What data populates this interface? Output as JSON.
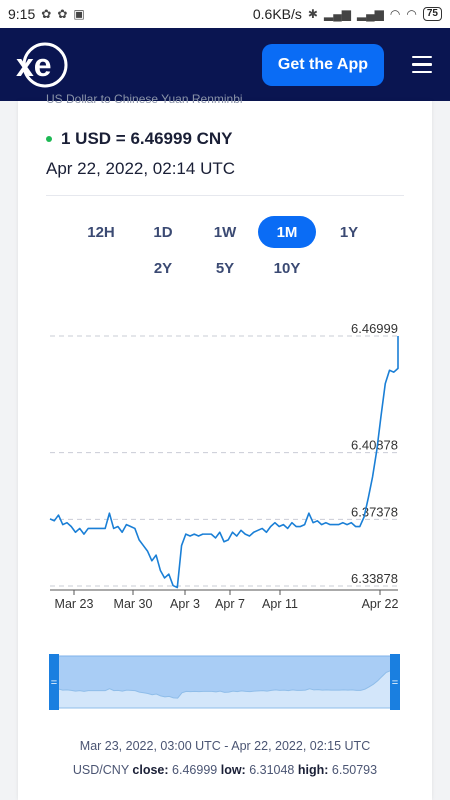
{
  "status": {
    "time": "9:15",
    "net_speed": "0.6KB/s",
    "battery": "75"
  },
  "header": {
    "logo": "xe",
    "get_app_label": "Get the App"
  },
  "converter": {
    "subtitle": "US Dollar to Chinese Yuan Renminbi",
    "rate": "1 USD = 6.46999 CNY",
    "timestamp": "Apr 22, 2022, 02:14 UTC"
  },
  "periods": {
    "row1": [
      "12H",
      "1D",
      "1W",
      "1M",
      "1Y"
    ],
    "row2": [
      "2Y",
      "5Y",
      "10Y"
    ],
    "active": "1M"
  },
  "chart_data": {
    "type": "line",
    "y_ticks": [
      "6.46999",
      "6.40878",
      "6.37378",
      "6.33878"
    ],
    "y_tick_values": [
      6.46999,
      6.40878,
      6.37378,
      6.33878
    ],
    "x_ticks": [
      "Mar 23",
      "Mar 30",
      "Apr 3",
      "Apr 7",
      "Apr 11",
      "Apr 22"
    ],
    "ylim": [
      6.33878,
      6.46999
    ],
    "series": [
      {
        "values": [
          6.374,
          6.373,
          6.376,
          6.371,
          6.372,
          6.37,
          6.367,
          6.369,
          6.366,
          6.369,
          6.369,
          6.369,
          6.369,
          6.369,
          6.377,
          6.369,
          6.37,
          6.367,
          6.371,
          6.37,
          6.369,
          6.363,
          6.36,
          6.357,
          6.352,
          6.355,
          6.347,
          6.343,
          6.345,
          6.339,
          6.338,
          6.36,
          6.366,
          6.365,
          6.366,
          6.365,
          6.366,
          6.366,
          6.366,
          6.364,
          6.367,
          6.362,
          6.363,
          6.367,
          6.365,
          6.368,
          6.366,
          6.365,
          6.367,
          6.368,
          6.369,
          6.367,
          6.37,
          6.372,
          6.37,
          6.371,
          6.369,
          6.372,
          6.37,
          6.37,
          6.371,
          6.377,
          6.372,
          6.373,
          6.371,
          6.372,
          6.371,
          6.371,
          6.371,
          6.372,
          6.371,
          6.372,
          6.37,
          6.37,
          6.375,
          6.385,
          6.396,
          6.41,
          6.428,
          6.445,
          6.452,
          6.451,
          6.453
        ]
      }
    ]
  },
  "navigator": {
    "left_handle": "=",
    "right_handle": "="
  },
  "footer": {
    "range": "Mar 23, 2022, 03:00 UTC - Apr 22, 2022, 02:15 UTC",
    "pair": "USD/CNY",
    "close_label": "close:",
    "close_value": "6.46999",
    "low_label": "low:",
    "low_value": "6.31048",
    "high_label": "high:",
    "high_value": "6.50793"
  },
  "colors": {
    "header_bg": "#0a1551",
    "accent": "#0a6cf5",
    "line": "#1a7fd6",
    "live_dot": "#1db954"
  }
}
